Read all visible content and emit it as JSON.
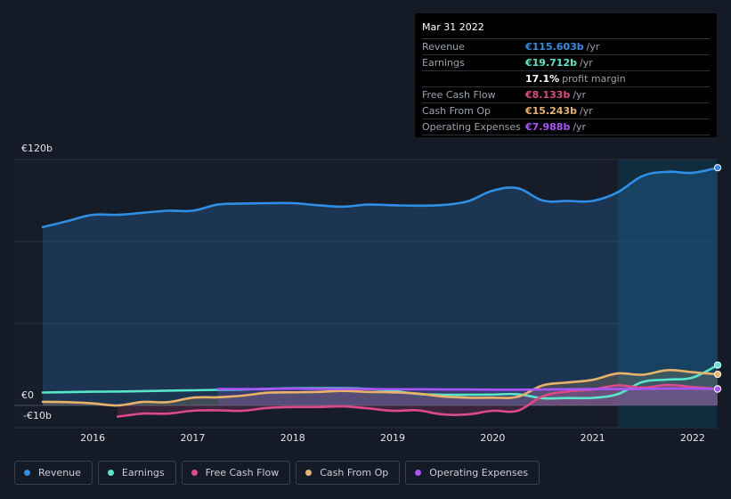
{
  "tooltip": {
    "date": "Mar 31 2022",
    "rows": [
      {
        "label": "Revenue",
        "value": "€115.603b",
        "unit": "/yr",
        "color": "#2f8ee5"
      },
      {
        "label": "Earnings",
        "value": "€19.712b",
        "unit": "/yr",
        "color": "#58e6c8"
      },
      {
        "label": "",
        "value": "17.1%",
        "unit": "profit margin",
        "color": "#ffffff"
      },
      {
        "label": "Free Cash Flow",
        "value": "€8.133b",
        "unit": "/yr",
        "color": "#dd4a87"
      },
      {
        "label": "Cash From Op",
        "value": "€15.243b",
        "unit": "/yr",
        "color": "#e9b26a"
      },
      {
        "label": "Operating Expenses",
        "value": "€7.988b",
        "unit": "/yr",
        "color": "#a855f7"
      }
    ]
  },
  "chart_data": {
    "type": "area",
    "ylim": [
      -10,
      120
    ],
    "xlim": [
      2015.5,
      2022.25
    ],
    "y_tick_labels": [
      {
        "value": 120,
        "label": "€120b"
      },
      {
        "value": 0,
        "label": "€0"
      },
      {
        "value": -10,
        "label": "-€10b"
      }
    ],
    "x_ticks": [
      2016,
      2017,
      2018,
      2019,
      2020,
      2021,
      2022
    ],
    "x_tick_labels": [
      "2016",
      "2017",
      "2018",
      "2019",
      "2020",
      "2021",
      "2022"
    ],
    "forecast_start": 2021.25,
    "series": [
      {
        "name": "Revenue",
        "color": "#2f8ee5",
        "fill": true,
        "x": [
          2015.5,
          2015.75,
          2016.0,
          2016.25,
          2016.5,
          2016.75,
          2017.0,
          2017.25,
          2017.5,
          2017.75,
          2018.0,
          2018.25,
          2018.5,
          2018.75,
          2019.0,
          2019.25,
          2019.5,
          2019.75,
          2020.0,
          2020.25,
          2020.5,
          2020.75,
          2021.0,
          2021.25,
          2021.5,
          2021.75,
          2022.0,
          2022.25
        ],
        "y": [
          87,
          90,
          93,
          93,
          94,
          95,
          95,
          98,
          98.5,
          98.7,
          98.7,
          97.7,
          97,
          98,
          97.7,
          97.5,
          97.8,
          99.6,
          104.8,
          106,
          100,
          99.8,
          99.8,
          104,
          112,
          114,
          113.5,
          116
        ]
      },
      {
        "name": "Earnings",
        "color": "#58e6c8",
        "fill": false,
        "x": [
          2015.5,
          2015.75,
          2016.0,
          2016.25,
          2016.5,
          2016.75,
          2017.0,
          2017.25,
          2017.5,
          2017.75,
          2018.0,
          2018.25,
          2018.5,
          2018.75,
          2019.0,
          2019.25,
          2019.5,
          2019.75,
          2020.0,
          2020.25,
          2020.5,
          2020.75,
          2021.0,
          2021.25,
          2021.5,
          2021.75,
          2022.0,
          2022.25
        ],
        "y": [
          6.3,
          6.5,
          6.7,
          6.8,
          7,
          7.2,
          7.4,
          7.6,
          7.8,
          8.1,
          8.4,
          8.4,
          8.4,
          8.1,
          7.2,
          5.6,
          5.2,
          5.2,
          5.3,
          5.5,
          3.5,
          3.6,
          3.7,
          5.5,
          11.5,
          12.6,
          13.6,
          19.7
        ]
      },
      {
        "name": "Free Cash Flow",
        "color": "#dd4a87",
        "fill": true,
        "x": [
          2016.25,
          2016.5,
          2016.75,
          2017.0,
          2017.25,
          2017.5,
          2017.75,
          2018.0,
          2018.25,
          2018.5,
          2018.75,
          2019.0,
          2019.25,
          2019.5,
          2019.75,
          2020.0,
          2020.25,
          2020.5,
          2020.75,
          2021.0,
          2021.25,
          2021.5,
          2021.75,
          2022.0,
          2022.25
        ],
        "y": [
          -5.5,
          -4,
          -4,
          -2.6,
          -2.4,
          -2.6,
          -1.2,
          -0.8,
          -0.8,
          -0.5,
          -1.4,
          -2.6,
          -2.4,
          -4.4,
          -4.4,
          -2.6,
          -2.6,
          4.5,
          6.8,
          7.8,
          9.8,
          8.7,
          10,
          9,
          8.1
        ]
      },
      {
        "name": "Cash From Op",
        "color": "#e9b26a",
        "fill": true,
        "x": [
          2015.5,
          2015.75,
          2016.0,
          2016.25,
          2016.5,
          2016.75,
          2017.0,
          2017.25,
          2017.5,
          2017.75,
          2018.0,
          2018.25,
          2018.5,
          2018.75,
          2019.0,
          2019.25,
          2019.5,
          2019.75,
          2020.0,
          2020.25,
          2020.5,
          2020.75,
          2021.0,
          2021.25,
          2021.5,
          2021.75,
          2022.0,
          2022.25
        ],
        "y": [
          1.8,
          1.6,
          1,
          0,
          1.7,
          1.6,
          3.8,
          4,
          4.8,
          6.2,
          6.4,
          6.6,
          7.1,
          6.6,
          6.4,
          5.8,
          4.4,
          3.8,
          3.8,
          4.2,
          9.8,
          11.2,
          12.5,
          15.6,
          15,
          17.2,
          16.2,
          15.2
        ]
      },
      {
        "name": "Operating Expenses",
        "color": "#a855f7",
        "fill": true,
        "x": [
          2017.25,
          2017.5,
          2017.75,
          2018.0,
          2018.25,
          2018.5,
          2018.75,
          2019.0,
          2019.25,
          2019.5,
          2019.75,
          2020.0,
          2020.25,
          2020.5,
          2020.75,
          2021.0,
          2021.25,
          2021.5,
          2021.75,
          2022.0,
          2022.25
        ],
        "y": [
          8,
          8,
          8.1,
          8.2,
          8.1,
          8,
          8,
          7.9,
          7.9,
          7.8,
          7.8,
          7.7,
          7.7,
          7.8,
          7.9,
          8,
          8,
          8.1,
          8.2,
          8.2,
          8
        ]
      }
    ]
  },
  "legend": [
    {
      "label": "Revenue",
      "color": "#2f8ee5"
    },
    {
      "label": "Earnings",
      "color": "#58e6c8"
    },
    {
      "label": "Free Cash Flow",
      "color": "#dd4a87"
    },
    {
      "label": "Cash From Op",
      "color": "#e9b26a"
    },
    {
      "label": "Operating Expenses",
      "color": "#a855f7"
    }
  ]
}
